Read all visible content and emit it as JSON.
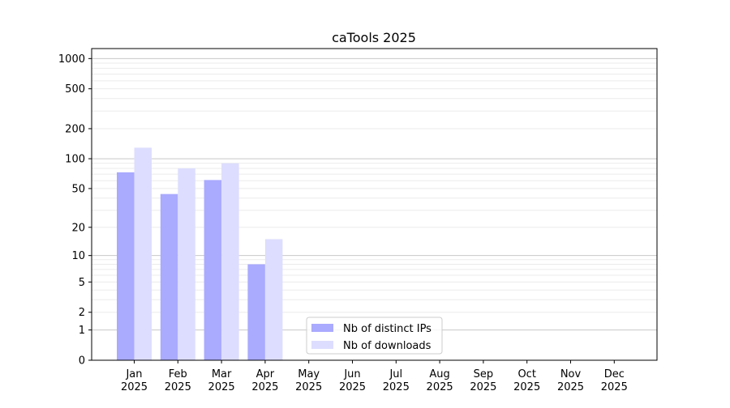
{
  "chart_data": {
    "type": "bar",
    "title": "caTools 2025",
    "xlabel": "",
    "ylabel": "",
    "y_scale": "log(1+y)",
    "ylim": [
      0,
      1200
    ],
    "y_ticks": [
      0,
      1,
      2,
      5,
      10,
      20,
      50,
      100,
      200,
      500,
      1000
    ],
    "grid": true,
    "legend_position": "lower-center",
    "categories": [
      "Jan\n2025",
      "Feb\n2025",
      "Mar\n2025",
      "Apr\n2025",
      "May\n2025",
      "Jun\n2025",
      "Jul\n2025",
      "Aug\n2025",
      "Sep\n2025",
      "Oct\n2025",
      "Nov\n2025",
      "Dec\n2025"
    ],
    "series": [
      {
        "name": "Nb of distinct IPs",
        "color": "#aaaaff",
        "values": [
          73,
          44,
          61,
          8,
          null,
          null,
          null,
          null,
          null,
          null,
          null,
          null
        ]
      },
      {
        "name": "Nb of downloads",
        "color": "#ddddff",
        "values": [
          129,
          80,
          90,
          15,
          null,
          null,
          null,
          null,
          null,
          null,
          null,
          null
        ]
      }
    ]
  }
}
